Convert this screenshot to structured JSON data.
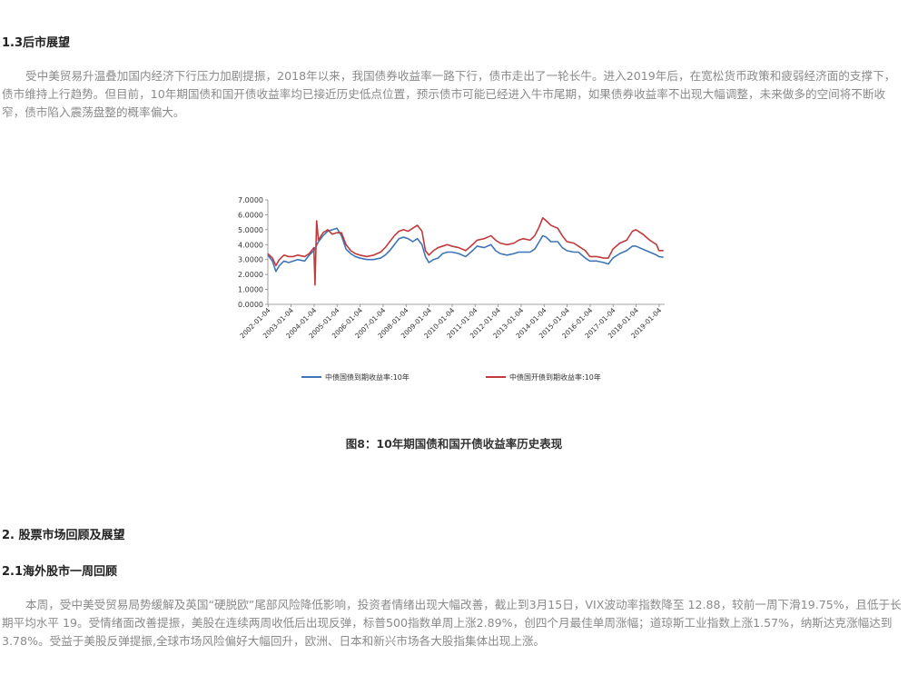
{
  "section_1_3": {
    "heading": "1.3后市展望",
    "paragraph": "受中美贸易升温叠加国内经济下行压力加剧提振，2018年以来，我国债券收益率一路下行，债市走出了一轮长牛。进入2019年后，在宽松货币政策和疲弱经济面的支撑下，债市维持上行趋势。但目前，10年期国债和国开债收益率均已接近历史低点位置，预示债市可能已经进入牛市尾期，如果债券收益率不出现大幅调整，未来做多的空间将不断收窄，债市陷入震荡盘整的概率偏大。"
  },
  "figure": {
    "caption": "图8：10年期国债和国开债收益率历史表现"
  },
  "chart_data": {
    "type": "line",
    "x_ticks": [
      "2002-01-04",
      "2003-01-04",
      "2004-01-04",
      "2005-01-04",
      "2006-01-04",
      "2007-01-04",
      "2008-01-04",
      "2009-01-04",
      "2010-01-04",
      "2011-01-04",
      "2012-01-04",
      "2013-01-04",
      "2014-01-04",
      "2015-01-04",
      "2016-01-04",
      "2017-01-04",
      "2018-01-04",
      "2019-01-04"
    ],
    "y_ticks": [
      "0.0000",
      "1.0000",
      "2.0000",
      "3.0000",
      "4.0000",
      "5.0000",
      "6.0000",
      "7.0000"
    ],
    "ylim": [
      0,
      7
    ],
    "x_range": [
      2002.0,
      2019.25
    ],
    "legend_position": "bottom",
    "series": [
      {
        "name": "中债国债到期收益率:10年",
        "color": "#3e75b8",
        "points": [
          [
            2002.0,
            3.3
          ],
          [
            2002.2,
            2.9
          ],
          [
            2002.35,
            2.2
          ],
          [
            2002.5,
            2.6
          ],
          [
            2002.7,
            2.9
          ],
          [
            2002.9,
            2.8
          ],
          [
            2003.1,
            2.9
          ],
          [
            2003.3,
            3.0
          ],
          [
            2003.6,
            2.9
          ],
          [
            2003.8,
            3.3
          ],
          [
            2004.0,
            3.6
          ],
          [
            2004.2,
            4.2
          ],
          [
            2004.4,
            4.6
          ],
          [
            2004.6,
            4.9
          ],
          [
            2004.8,
            5.0
          ],
          [
            2005.0,
            5.1
          ],
          [
            2005.2,
            4.6
          ],
          [
            2005.4,
            3.7
          ],
          [
            2005.6,
            3.4
          ],
          [
            2005.8,
            3.2
          ],
          [
            2006.0,
            3.1
          ],
          [
            2006.3,
            3.0
          ],
          [
            2006.6,
            3.0
          ],
          [
            2006.9,
            3.1
          ],
          [
            2007.1,
            3.3
          ],
          [
            2007.3,
            3.6
          ],
          [
            2007.5,
            4.0
          ],
          [
            2007.7,
            4.4
          ],
          [
            2007.9,
            4.5
          ],
          [
            2008.1,
            4.4
          ],
          [
            2008.3,
            4.2
          ],
          [
            2008.5,
            4.4
          ],
          [
            2008.7,
            4.0
          ],
          [
            2008.85,
            3.2
          ],
          [
            2009.0,
            2.8
          ],
          [
            2009.2,
            3.0
          ],
          [
            2009.4,
            3.1
          ],
          [
            2009.6,
            3.4
          ],
          [
            2009.8,
            3.5
          ],
          [
            2010.0,
            3.5
          ],
          [
            2010.3,
            3.4
          ],
          [
            2010.6,
            3.2
          ],
          [
            2010.9,
            3.6
          ],
          [
            2011.1,
            3.9
          ],
          [
            2011.4,
            3.8
          ],
          [
            2011.7,
            4.0
          ],
          [
            2011.9,
            3.6
          ],
          [
            2012.1,
            3.4
          ],
          [
            2012.4,
            3.3
          ],
          [
            2012.7,
            3.4
          ],
          [
            2012.9,
            3.5
          ],
          [
            2013.1,
            3.5
          ],
          [
            2013.4,
            3.5
          ],
          [
            2013.6,
            3.7
          ],
          [
            2013.8,
            4.2
          ],
          [
            2013.95,
            4.6
          ],
          [
            2014.1,
            4.5
          ],
          [
            2014.3,
            4.2
          ],
          [
            2014.6,
            4.2
          ],
          [
            2014.8,
            3.8
          ],
          [
            2015.0,
            3.6
          ],
          [
            2015.3,
            3.5
          ],
          [
            2015.5,
            3.5
          ],
          [
            2015.8,
            3.1
          ],
          [
            2016.0,
            2.9
          ],
          [
            2016.3,
            2.9
          ],
          [
            2016.6,
            2.8
          ],
          [
            2016.8,
            2.7
          ],
          [
            2017.0,
            3.1
          ],
          [
            2017.3,
            3.4
          ],
          [
            2017.6,
            3.6
          ],
          [
            2017.85,
            3.9
          ],
          [
            2018.0,
            3.9
          ],
          [
            2018.3,
            3.7
          ],
          [
            2018.6,
            3.5
          ],
          [
            2018.9,
            3.3
          ],
          [
            2019.0,
            3.2
          ],
          [
            2019.2,
            3.15
          ]
        ]
      },
      {
        "name": "中债国开债到期收益率:10年",
        "color": "#c0393b",
        "points": [
          [
            2002.0,
            3.4
          ],
          [
            2002.2,
            3.1
          ],
          [
            2002.35,
            2.6
          ],
          [
            2002.5,
            3.0
          ],
          [
            2002.7,
            3.3
          ],
          [
            2002.9,
            3.2
          ],
          [
            2003.1,
            3.2
          ],
          [
            2003.3,
            3.3
          ],
          [
            2003.6,
            3.2
          ],
          [
            2003.8,
            3.4
          ],
          [
            2004.0,
            3.8
          ],
          [
            2004.05,
            1.3
          ],
          [
            2004.12,
            5.6
          ],
          [
            2004.2,
            4.3
          ],
          [
            2004.4,
            4.8
          ],
          [
            2004.6,
            5.0
          ],
          [
            2004.8,
            4.7
          ],
          [
            2005.0,
            4.8
          ],
          [
            2005.2,
            4.8
          ],
          [
            2005.4,
            4.0
          ],
          [
            2005.6,
            3.6
          ],
          [
            2005.8,
            3.4
          ],
          [
            2006.0,
            3.3
          ],
          [
            2006.3,
            3.2
          ],
          [
            2006.6,
            3.3
          ],
          [
            2006.9,
            3.5
          ],
          [
            2007.1,
            3.8
          ],
          [
            2007.3,
            4.2
          ],
          [
            2007.5,
            4.6
          ],
          [
            2007.7,
            4.9
          ],
          [
            2007.9,
            5.0
          ],
          [
            2008.1,
            4.9
          ],
          [
            2008.3,
            5.1
          ],
          [
            2008.5,
            5.3
          ],
          [
            2008.7,
            4.9
          ],
          [
            2008.85,
            3.6
          ],
          [
            2009.0,
            3.3
          ],
          [
            2009.2,
            3.6
          ],
          [
            2009.4,
            3.8
          ],
          [
            2009.6,
            3.9
          ],
          [
            2009.8,
            4.0
          ],
          [
            2010.0,
            3.9
          ],
          [
            2010.3,
            3.8
          ],
          [
            2010.6,
            3.6
          ],
          [
            2010.9,
            4.0
          ],
          [
            2011.1,
            4.3
          ],
          [
            2011.4,
            4.4
          ],
          [
            2011.7,
            4.6
          ],
          [
            2011.9,
            4.3
          ],
          [
            2012.1,
            4.1
          ],
          [
            2012.4,
            4.0
          ],
          [
            2012.7,
            4.1
          ],
          [
            2012.9,
            4.3
          ],
          [
            2013.1,
            4.4
          ],
          [
            2013.4,
            4.3
          ],
          [
            2013.6,
            4.6
          ],
          [
            2013.8,
            5.2
          ],
          [
            2013.95,
            5.8
          ],
          [
            2014.1,
            5.6
          ],
          [
            2014.3,
            5.3
          ],
          [
            2014.6,
            5.1
          ],
          [
            2014.8,
            4.6
          ],
          [
            2015.0,
            4.2
          ],
          [
            2015.3,
            4.1
          ],
          [
            2015.5,
            3.9
          ],
          [
            2015.8,
            3.6
          ],
          [
            2016.0,
            3.2
          ],
          [
            2016.3,
            3.2
          ],
          [
            2016.6,
            3.1
          ],
          [
            2016.8,
            3.1
          ],
          [
            2017.0,
            3.7
          ],
          [
            2017.3,
            4.1
          ],
          [
            2017.6,
            4.3
          ],
          [
            2017.85,
            4.9
          ],
          [
            2018.0,
            5.0
          ],
          [
            2018.3,
            4.7
          ],
          [
            2018.6,
            4.3
          ],
          [
            2018.9,
            4.0
          ],
          [
            2019.0,
            3.6
          ],
          [
            2019.2,
            3.6
          ]
        ]
      }
    ]
  },
  "section_2": {
    "heading": "2. 股票市场回顾及展望"
  },
  "section_2_1": {
    "heading": "2.1海外股市一周回顾",
    "paragraph": "本周，受中美受贸易局势缓解及英国“硬脱欧”尾部风险降低影响，投资者情绪出现大幅改善，截止到3月15日，VIX波动率指数降至 12.88，较前一周下滑19.75%，且低于长期平均水平 19。受情绪面改善提振，美股在连续两周收低后出现反弹，标普500指数单周上涨2.89%，创四个月最佳单周涨幅；道琼斯工业指数上涨1.57%，纳斯达克涨幅达到3.78%。受益于美股反弹提振,全球市场风险偏好大幅回升，欧洲、日本和新兴市场各大股指集体出现上涨。"
  }
}
